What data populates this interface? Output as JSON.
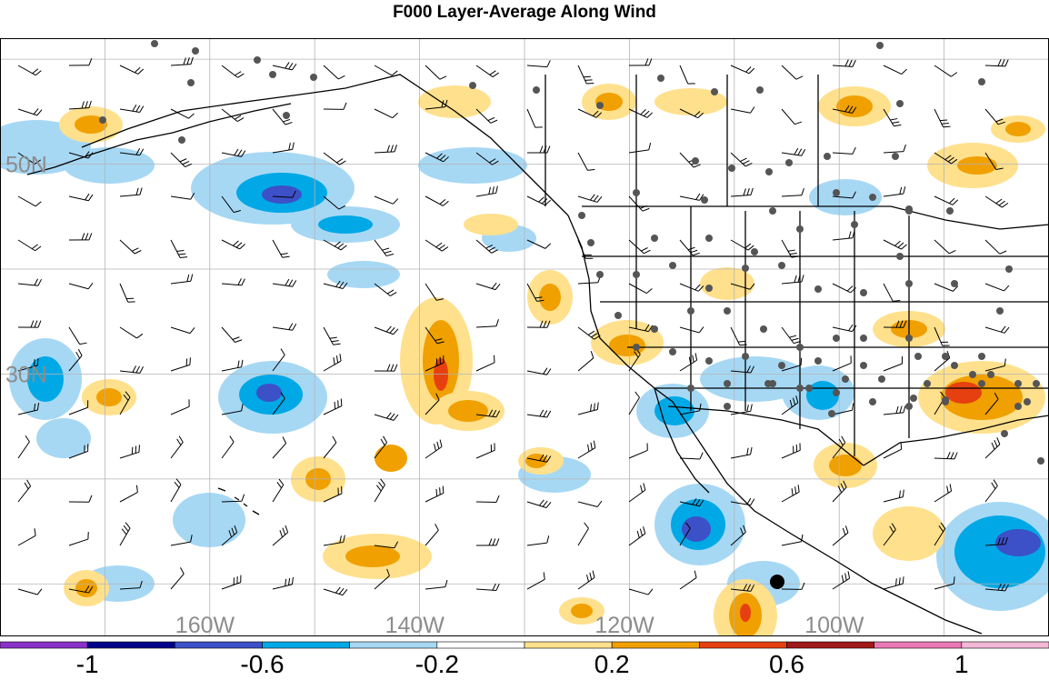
{
  "title": "F000 Layer-Average Along Wind",
  "lat_labels": [
    {
      "text": "50N",
      "lat": 50
    },
    {
      "text": "30N",
      "lat": 30
    }
  ],
  "lon_labels": [
    {
      "text": "160W",
      "lon": -160
    },
    {
      "text": "140W",
      "lon": -140
    },
    {
      "text": "120W",
      "lon": -120
    },
    {
      "text": "100W",
      "lon": -100
    }
  ],
  "colorbar": {
    "bins": [
      {
        "color": "#8a32c8"
      },
      {
        "color": "#00008b"
      },
      {
        "color": "#3c50c8"
      },
      {
        "color": "#00a8e6"
      },
      {
        "color": "#a6d8f4"
      },
      {
        "color": "#ffffff"
      },
      {
        "color": "#ffe08c"
      },
      {
        "color": "#f0a000"
      },
      {
        "color": "#e64010"
      },
      {
        "color": "#a01818"
      },
      {
        "color": "#ea78b4"
      },
      {
        "color": "#f2b8d6"
      }
    ],
    "labels": [
      "-1",
      "-0.6",
      "-0.2",
      "0.2",
      "0.6",
      "1"
    ]
  },
  "colors": {
    "negative_light": "#a6d8f4",
    "negative_mid": "#00a8e6",
    "negative_strong": "#3c50c8",
    "positive_light": "#ffe08c",
    "positive_mid": "#f0a000",
    "positive_strong": "#e64010",
    "station_dot": "#555555",
    "grid": "#b4b4b4"
  }
}
